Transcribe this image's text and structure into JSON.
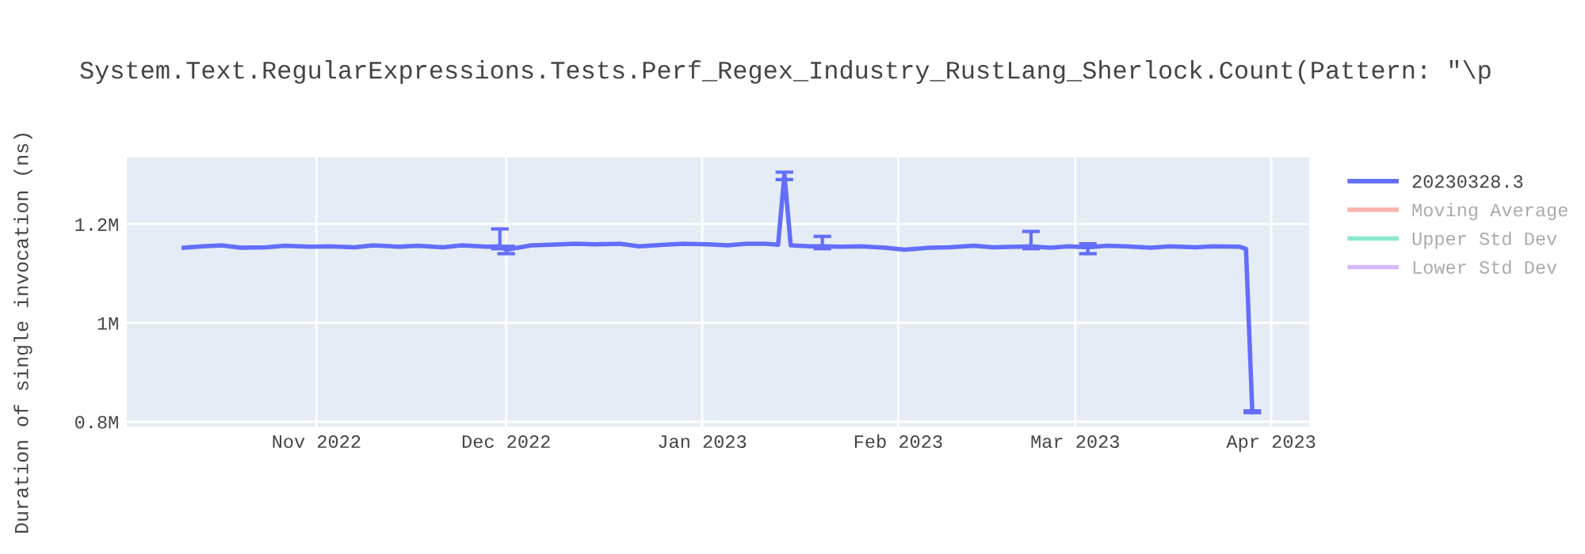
{
  "chart_data": {
    "type": "line",
    "title": "System.Text.RegularExpressions.Tests.Perf_Regex_Industry_RustLang_Sherlock.Count(Pattern: \"\\p",
    "ylabel": "Duration of single invocation (ns)",
    "x": [
      "2022-10-11",
      "2022-10-14",
      "2022-10-17",
      "2022-10-20",
      "2022-10-24",
      "2022-10-27",
      "2022-10-31",
      "2022-11-03",
      "2022-11-07",
      "2022-11-10",
      "2022-11-14",
      "2022-11-17",
      "2022-11-21",
      "2022-11-24",
      "2022-11-28",
      "2022-11-30",
      "2022-12-01",
      "2022-12-05",
      "2022-12-08",
      "2022-12-12",
      "2022-12-15",
      "2022-12-19",
      "2022-12-22",
      "2022-12-26",
      "2022-12-29",
      "2023-01-02",
      "2023-01-05",
      "2023-01-08",
      "2023-01-11",
      "2023-01-13",
      "2023-01-14",
      "2023-01-15",
      "2023-01-18",
      "2023-01-20",
      "2023-01-23",
      "2023-01-26",
      "2023-01-30",
      "2023-02-02",
      "2023-02-06",
      "2023-02-09",
      "2023-02-13",
      "2023-02-16",
      "2023-02-20",
      "2023-02-22",
      "2023-02-25",
      "2023-02-28",
      "2023-03-03",
      "2023-03-06",
      "2023-03-09",
      "2023-03-13",
      "2023-03-16",
      "2023-03-20",
      "2023-03-23",
      "2023-03-27",
      "2023-03-28",
      "2023-03-29"
    ],
    "series": [
      {
        "name": "20230328.3",
        "color": "#636efa",
        "values": [
          1152000,
          1155000,
          1157000,
          1152000,
          1153000,
          1156000,
          1154000,
          1155000,
          1153000,
          1157000,
          1154000,
          1156000,
          1153000,
          1157000,
          1154000,
          1155000,
          1148000,
          1157000,
          1158000,
          1160000,
          1159000,
          1160000,
          1155000,
          1158000,
          1160000,
          1159000,
          1157000,
          1160000,
          1160000,
          1158000,
          1300000,
          1157000,
          1155000,
          1155000,
          1154000,
          1155000,
          1152000,
          1148000,
          1152000,
          1153000,
          1156000,
          1153000,
          1154000,
          1155000,
          1152000,
          1155000,
          1153000,
          1156000,
          1155000,
          1152000,
          1155000,
          1153000,
          1155000,
          1154000,
          1150000,
          820000
        ],
        "errors": [
          null,
          null,
          null,
          null,
          null,
          null,
          null,
          null,
          null,
          null,
          null,
          null,
          null,
          null,
          null,
          [
            1150000,
            1190000
          ],
          [
            1140000,
            1155000
          ],
          null,
          null,
          null,
          null,
          null,
          null,
          null,
          null,
          null,
          null,
          null,
          null,
          null,
          [
            1290000,
            1305000
          ],
          null,
          null,
          [
            1150000,
            1175000
          ],
          null,
          null,
          null,
          null,
          null,
          null,
          null,
          null,
          null,
          [
            1150000,
            1185000
          ],
          null,
          null,
          [
            1140000,
            1160000
          ],
          null,
          null,
          null,
          null,
          null,
          null,
          null,
          null,
          [
            818000,
            822000
          ]
        ]
      },
      {
        "name": "Moving Average",
        "color": "#ef553b",
        "values": [
          null,
          null,
          null,
          null,
          null,
          null,
          null,
          null,
          null,
          null,
          null,
          null,
          null,
          null,
          null,
          null,
          null,
          null,
          null,
          null,
          null,
          null,
          null,
          null,
          null,
          null,
          null,
          null,
          null,
          null,
          null,
          null,
          null,
          null,
          null,
          null,
          null,
          null,
          null,
          null,
          null,
          null,
          null,
          null,
          null,
          null,
          null,
          null,
          null,
          null,
          null,
          null,
          null,
          null,
          null,
          null
        ]
      },
      {
        "name": "Upper Std Dev",
        "color": "#00cc96",
        "values": [
          null,
          null,
          null,
          null,
          null,
          null,
          null,
          null,
          null,
          null,
          null,
          null,
          null,
          null,
          null,
          null,
          null,
          null,
          null,
          null,
          null,
          null,
          null,
          null,
          null,
          null,
          null,
          null,
          null,
          null,
          null,
          null,
          null,
          null,
          null,
          null,
          null,
          null,
          null,
          null,
          null,
          null,
          null,
          null,
          null,
          null,
          null,
          null,
          null,
          null,
          null,
          null,
          null,
          null,
          null,
          null
        ]
      },
      {
        "name": "Lower Std Dev",
        "color": "#ab63fa",
        "values": [
          null,
          null,
          null,
          null,
          null,
          null,
          null,
          null,
          null,
          null,
          null,
          null,
          null,
          null,
          null,
          null,
          null,
          null,
          null,
          null,
          null,
          null,
          null,
          null,
          null,
          null,
          null,
          null,
          null,
          null,
          null,
          null,
          null,
          null,
          null,
          null,
          null,
          null,
          null,
          null,
          null,
          null,
          null,
          null,
          null,
          null,
          null,
          null,
          null,
          null,
          null,
          null,
          null,
          null,
          null,
          null
        ]
      }
    ],
    "xlim": [
      "2022-10-02",
      "2023-04-07"
    ],
    "xticks": [
      {
        "value": "2022-11-01",
        "label": "Nov 2022"
      },
      {
        "value": "2022-12-01",
        "label": "Dec 2022"
      },
      {
        "value": "2023-01-01",
        "label": "Jan 2023"
      },
      {
        "value": "2023-02-01",
        "label": "Feb 2023"
      },
      {
        "value": "2023-03-01",
        "label": "Mar 2023"
      },
      {
        "value": "2023-04-01",
        "label": "Apr 2023"
      }
    ],
    "ylim": [
      790000,
      1335000
    ],
    "yticks": [
      {
        "value": 800000,
        "label": "0.8M"
      },
      {
        "value": 1000000,
        "label": "1M"
      },
      {
        "value": 1200000,
        "label": "1.2M"
      }
    ],
    "grid": true,
    "legend": "right",
    "marker": "none",
    "line_style": "solid"
  }
}
